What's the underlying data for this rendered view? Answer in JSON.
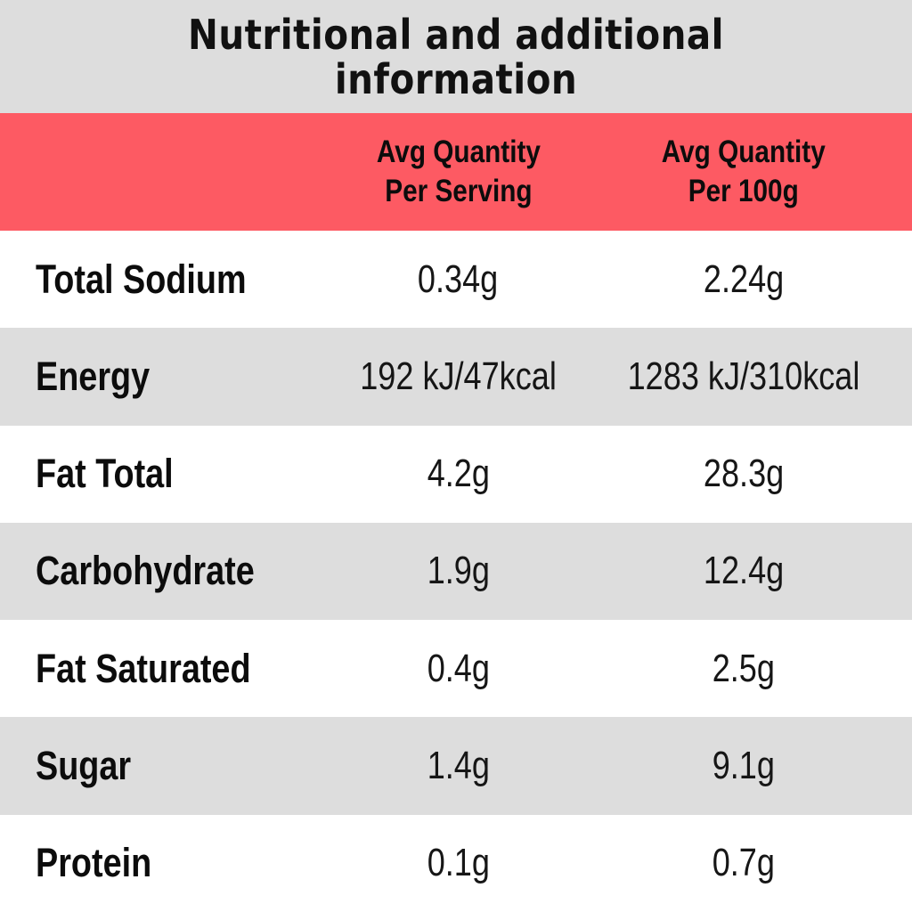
{
  "title": {
    "line1": "Nutritional and additional",
    "line2": "information"
  },
  "header": {
    "serving": {
      "line1": "Avg Quantity",
      "line2": "Per Serving"
    },
    "per100g": {
      "line1": "Avg Quantity",
      "line2": "Per 100g"
    }
  },
  "rows": [
    {
      "label": "Total Sodium",
      "per_serving": "0.34g",
      "per_100g": "2.24g"
    },
    {
      "label": "Energy",
      "per_serving": "192 kJ/47kcal",
      "per_100g": "1283 kJ/310kcal"
    },
    {
      "label": "Fat Total",
      "per_serving": "4.2g",
      "per_100g": "28.3g"
    },
    {
      "label": "Carbohydrate",
      "per_serving": "1.9g",
      "per_100g": "12.4g"
    },
    {
      "label": "Fat Saturated",
      "per_serving": "0.4g",
      "per_100g": "2.5g"
    },
    {
      "label": "Sugar",
      "per_serving": "1.4g",
      "per_100g": "9.1g"
    },
    {
      "label": "Protein",
      "per_serving": "0.1g",
      "per_100g": "0.7g"
    }
  ],
  "colors": {
    "header_background": "#fd5a63",
    "stripe_gray": "#dddddd",
    "row_white": "#ffffff",
    "text": "#0c0c0c"
  }
}
